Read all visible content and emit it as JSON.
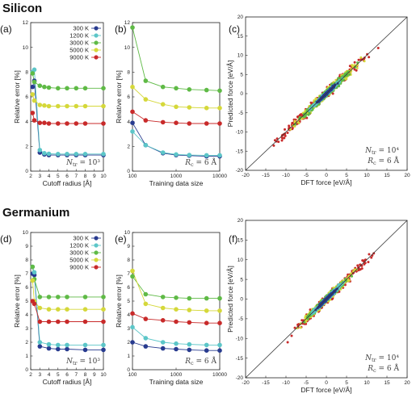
{
  "colors": {
    "300 K": "#283b8f",
    "1200 K": "#5cc6c8",
    "3000 K": "#5fba46",
    "5000 K": "#d5d83a",
    "9000 K": "#c82a2a"
  },
  "section_titles": {
    "silicon": "Silicon",
    "germanium": "Germanium"
  },
  "chart_data": [
    {
      "id": "a",
      "panel_label": "(a)",
      "type": "line",
      "element": "Silicon",
      "xlabel": "Cutoff radius [Å]",
      "ylabel": "Relative error [%]",
      "xlim": [
        2,
        10
      ],
      "ylim": [
        0,
        12
      ],
      "xticks": [
        "2",
        "3",
        "4",
        "5",
        "6",
        "7",
        "8",
        "9",
        "10"
      ],
      "yticks": [
        "0",
        "2",
        "4",
        "6",
        "8",
        "10",
        "12"
      ],
      "annotation": "N_tr = 10³",
      "legend": [
        "300 K",
        "1200 K",
        "3000 K",
        "5000 K",
        "9000 K"
      ],
      "legend_position": "top-right",
      "x": [
        2.2,
        2.4,
        3,
        3.5,
        4,
        5,
        6,
        7,
        8,
        10
      ],
      "series": [
        {
          "name": "300 K",
          "values": [
            6.8,
            7.3,
            1.5,
            1.35,
            1.3,
            1.3,
            1.3,
            1.3,
            1.3,
            1.3
          ]
        },
        {
          "name": "1200 K",
          "values": [
            8.0,
            8.2,
            1.7,
            1.45,
            1.4,
            1.38,
            1.38,
            1.38,
            1.38,
            1.38
          ]
        },
        {
          "name": "3000 K",
          "values": [
            7.9,
            7.2,
            6.9,
            6.8,
            6.75,
            6.7,
            6.7,
            6.7,
            6.7,
            6.7
          ]
        },
        {
          "name": "5000 K",
          "values": [
            6.2,
            5.7,
            5.35,
            5.3,
            5.25,
            5.25,
            5.25,
            5.25,
            5.25,
            5.25
          ]
        },
        {
          "name": "9000 K",
          "values": [
            4.7,
            4.1,
            3.9,
            3.9,
            3.85,
            3.85,
            3.85,
            3.85,
            3.85,
            3.85
          ]
        }
      ]
    },
    {
      "id": "b",
      "panel_label": "(b)",
      "type": "line",
      "element": "Silicon",
      "xlabel": "Training data size",
      "ylabel": "Relative error [%]",
      "xscale": "log",
      "xlim": [
        100,
        10000
      ],
      "ylim": [
        0,
        12
      ],
      "xticks": [
        "100",
        "1000",
        "10000"
      ],
      "yticks": [
        "0",
        "2",
        "4",
        "6",
        "8",
        "10",
        "12"
      ],
      "annotation": "R_c = 6 Å",
      "x": [
        100,
        200,
        500,
        1000,
        2000,
        5000,
        10000
      ],
      "series": [
        {
          "name": "300 K",
          "values": [
            3.9,
            2.1,
            1.45,
            1.3,
            1.25,
            1.2,
            1.2
          ]
        },
        {
          "name": "1200 K",
          "values": [
            3.2,
            2.1,
            1.5,
            1.35,
            1.3,
            1.28,
            1.28
          ]
        },
        {
          "name": "3000 K",
          "values": [
            11.6,
            7.3,
            6.8,
            6.7,
            6.6,
            6.55,
            6.5
          ]
        },
        {
          "name": "5000 K",
          "values": [
            6.8,
            5.8,
            5.4,
            5.2,
            5.15,
            5.1,
            5.1
          ]
        },
        {
          "name": "9000 K",
          "values": [
            4.8,
            4.1,
            3.95,
            3.9,
            3.85,
            3.85,
            3.85
          ]
        }
      ]
    },
    {
      "id": "c",
      "panel_label": "(c)",
      "type": "scatter",
      "element": "Silicon",
      "xlabel": "DFT force [eV/Å]",
      "ylabel": "Predicted force [eV/Å]",
      "xlim": [
        -20,
        20
      ],
      "ylim": [
        -20,
        20
      ],
      "xticks": [
        "-20",
        "-15",
        "-10",
        "-5",
        "0",
        "5",
        "10",
        "15",
        "20"
      ],
      "yticks": [
        "-20",
        "-15",
        "-10",
        "-5",
        "0",
        "5",
        "10",
        "15",
        "20"
      ],
      "annotation_lines": [
        "N_tr = 10⁴",
        "R_c = 6 Å"
      ],
      "spread": {
        "300 K": [
          -3,
          3,
          0.3
        ],
        "1200 K": [
          -5,
          5,
          0.5
        ],
        "3000 K": [
          -8,
          8,
          0.9
        ],
        "5000 K": [
          -11,
          11,
          1.1
        ],
        "9000 K": [
          -18,
          16,
          1.3
        ]
      }
    },
    {
      "id": "d",
      "panel_label": "(d)",
      "type": "line",
      "element": "Germanium",
      "xlabel": "Cutoff radius [Å]",
      "ylabel": "Relative error [%]",
      "xlim": [
        2,
        10
      ],
      "ylim": [
        0,
        10
      ],
      "xticks": [
        "2",
        "3",
        "4",
        "5",
        "6",
        "7",
        "8",
        "9",
        "10"
      ],
      "yticks": [
        "0",
        "1",
        "2",
        "3",
        "4",
        "5",
        "6",
        "7",
        "8",
        "9",
        "10"
      ],
      "annotation": "N_tr = 10³",
      "legend": [
        "300 K",
        "1200 K",
        "3000 K",
        "5000 K",
        "9000 K"
      ],
      "legend_position": "top-right",
      "x": [
        2.2,
        2.4,
        3,
        4,
        5,
        6,
        8,
        10
      ],
      "series": [
        {
          "name": "300 K",
          "values": [
            7.0,
            6.9,
            1.7,
            1.55,
            1.5,
            1.5,
            1.45,
            1.45
          ]
        },
        {
          "name": "1200 K",
          "values": [
            7.5,
            7.1,
            2.0,
            1.85,
            1.8,
            1.8,
            1.8,
            1.8
          ]
        },
        {
          "name": "3000 K",
          "values": [
            7.5,
            6.6,
            5.3,
            5.3,
            5.3,
            5.3,
            5.3,
            5.3
          ]
        },
        {
          "name": "5000 K",
          "values": [
            6.5,
            5.0,
            4.5,
            4.4,
            4.4,
            4.4,
            4.4,
            4.4
          ]
        },
        {
          "name": "9000 K",
          "values": [
            5.0,
            4.8,
            3.5,
            3.5,
            3.5,
            3.5,
            3.5,
            3.5
          ]
        }
      ]
    },
    {
      "id": "e",
      "panel_label": "(e)",
      "type": "line",
      "element": "Germanium",
      "xlabel": "Training data size",
      "ylabel": "Relative error [%]",
      "xscale": "log",
      "xlim": [
        100,
        10000
      ],
      "ylim": [
        0,
        10
      ],
      "xticks": [
        "100",
        "1000",
        "10000"
      ],
      "yticks": [
        "0",
        "1",
        "2",
        "3",
        "4",
        "5",
        "6",
        "7",
        "8",
        "9",
        "10"
      ],
      "annotation": "R_c = 6 Å",
      "x": [
        100,
        200,
        500,
        1000,
        2000,
        5000,
        10000
      ],
      "series": [
        {
          "name": "300 K",
          "values": [
            2.0,
            1.7,
            1.55,
            1.5,
            1.45,
            1.4,
            1.4
          ]
        },
        {
          "name": "1200 K",
          "values": [
            3.1,
            2.3,
            2.0,
            1.9,
            1.85,
            1.8,
            1.8
          ]
        },
        {
          "name": "3000 K",
          "values": [
            6.8,
            5.5,
            5.3,
            5.25,
            5.2,
            5.2,
            5.2
          ]
        },
        {
          "name": "5000 K",
          "values": [
            7.2,
            4.8,
            4.5,
            4.4,
            4.35,
            4.3,
            4.3
          ]
        },
        {
          "name": "9000 K",
          "values": [
            4.1,
            3.7,
            3.6,
            3.5,
            3.45,
            3.4,
            3.4
          ]
        }
      ]
    },
    {
      "id": "f",
      "panel_label": "(f)",
      "type": "scatter",
      "element": "Germanium",
      "xlabel": "DFT force [eV/Å]",
      "ylabel": "Predicted force [eV/Å]",
      "xlim": [
        -20,
        20
      ],
      "ylim": [
        -20,
        20
      ],
      "xticks": [
        "-20",
        "-15",
        "-10",
        "-5",
        "0",
        "5",
        "10",
        "15",
        "20"
      ],
      "yticks": [
        "-20",
        "-15",
        "-10",
        "-5",
        "0",
        "5",
        "10",
        "15",
        "20"
      ],
      "annotation_lines": [
        "N_tr = 10⁴",
        "R_c = 6 Å"
      ],
      "spread": {
        "300 K": [
          -3,
          3,
          0.3
        ],
        "1200 K": [
          -5,
          5,
          0.5
        ],
        "3000 K": [
          -7,
          7,
          0.7
        ],
        "5000 K": [
          -9,
          9,
          0.9
        ],
        "9000 K": [
          -12,
          15,
          1.2
        ]
      }
    }
  ]
}
